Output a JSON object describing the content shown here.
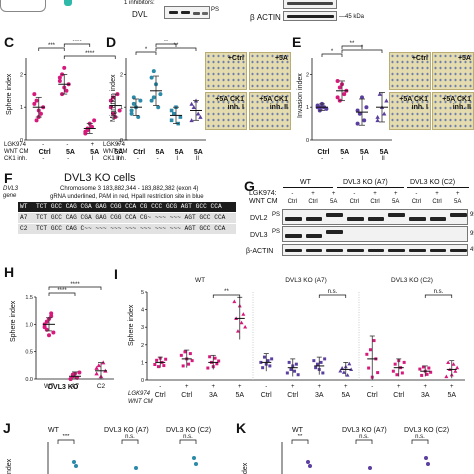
{
  "top": {
    "dvl_label": "DVL",
    "p_symbol": "PS",
    "inhibitors_text": "1 inhibitors:",
    "actin_label": "β ACTIN",
    "kda_label": "45 kDa"
  },
  "panel_c": {
    "letter": "C",
    "ylabel": "Sphere index",
    "sig": [
      "***",
      "****",
      "****"
    ],
    "row_labels": [
      "LGK974",
      "WNT CM",
      "CK1 inh."
    ],
    "lgk": [
      "-",
      "-",
      "+",
      "+"
    ],
    "wnt": [
      "Ctrl",
      "Ctrl",
      "5A",
      "5A"
    ],
    "ck1": [
      "-",
      "-",
      "I",
      "II"
    ],
    "yticks": [
      "0",
      "1",
      "2"
    ]
  },
  "panel_d": {
    "letter": "D",
    "ylabel": "Migration index",
    "sig": [
      "*",
      "**",
      "**"
    ],
    "row_labels": [
      "LGK974",
      "WNT CM",
      "CK1 inh."
    ],
    "wnt": [
      "Ctrl",
      "5A",
      "5A",
      "5A"
    ],
    "ck1": [
      "-",
      "-",
      "I",
      "II"
    ],
    "yticks": [
      "0",
      "1",
      "2"
    ],
    "images": [
      "+Ctrl",
      "+5A",
      "+5A CK1 inh. I",
      "+5A CK1 inh. II"
    ]
  },
  "panel_e": {
    "letter": "E",
    "ylabel": "Invasion index",
    "sig": [
      "*",
      "**",
      "*"
    ],
    "wnt": [
      "Ctrl",
      "5A",
      "5A",
      "5A"
    ],
    "ck1": [
      "-",
      "-",
      "I",
      "II"
    ],
    "yticks": [
      "0",
      "1",
      "2"
    ],
    "images": [
      "+Ctrl",
      "+5A",
      "+5A CK1 inh. I",
      "+5A CK1 inh. II"
    ]
  },
  "panel_f": {
    "letter": "F",
    "title": "DVL3 KO cells",
    "gene_label": "DVL3 gene",
    "chrom": "Chromosome 3 183,882,344 - 183,882,382 (exon 4)",
    "grna_note": "gRNA underlined, PAM in red, HpaII restriction site in blue",
    "rows": [
      {
        "name": "WT",
        "seq": "TCT GCC CAG CGA GAG CGG CCA CG CCC GCG AGT GCC CCA"
      },
      {
        "name": "A7",
        "seq": "TCT GCC CAG CGA GAG CGG CCA CG~ ~~~ ~~~ AGT GCC CCA"
      },
      {
        "name": "C2",
        "seq": "TCT GCC CAG C~~ ~~~ ~~~ ~~~ ~~~ ~~~ ~~~ AGT GCC CCA"
      }
    ]
  },
  "panel_g": {
    "letter": "G",
    "groups": [
      "WT",
      "DVL3 KO (A7)",
      "DVL3 KO (C2)"
    ],
    "lgk_label": "LGK974:",
    "wnt_label": "WNT CM",
    "lgk": [
      "-",
      "+",
      "+",
      "-",
      "+",
      "+",
      "-",
      "+",
      "+"
    ],
    "lanes": [
      "Ctrl",
      "Ctrl",
      "5A",
      "Ctrl",
      "Ctrl",
      "5A",
      "Ctrl",
      "Ctrl",
      "5A"
    ],
    "rows": [
      "DVL2",
      "DVL3",
      "β-ACTIN"
    ],
    "markers": [
      "95",
      "95",
      "45"
    ]
  },
  "panel_h": {
    "letter": "H",
    "ylabel": "Sphere index",
    "sig": [
      "****",
      "****"
    ],
    "categories": [
      "WT",
      "A7",
      "C2"
    ],
    "group_label": "DVL3 KO",
    "yticks": [
      "0.0",
      "0.5",
      "1.0",
      "1.5"
    ]
  },
  "panel_i": {
    "letter": "I",
    "ylabel": "Sphere index",
    "groups": [
      "WT",
      "DVL3 KO (A7)",
      "DVL3 KO (C2)"
    ],
    "sig": [
      "**",
      "n.s.",
      "n.s."
    ],
    "row_labels": [
      "LGK974",
      "WNT CM"
    ],
    "lgk": [
      "-",
      "+",
      "+",
      "+"
    ],
    "wnt": [
      "Ctrl",
      "Ctrl",
      "3A",
      "5A"
    ],
    "yticks": [
      "0",
      "1",
      "2",
      "3",
      "4",
      "5"
    ]
  },
  "panel_j": {
    "letter": "J",
    "groups": [
      "WT",
      "DVL3 KO (A7)",
      "DVL3 KO (C2)"
    ],
    "sig": [
      "***",
      "n.s.",
      "n.s."
    ],
    "ylabel": "ndex"
  },
  "panel_k": {
    "letter": "K",
    "groups": [
      "WT",
      "DVL3 KO (A7)",
      "DVL3 KO (C2)"
    ],
    "sig": [
      "**",
      "n.s.",
      "n.s."
    ],
    "ylabel": "dex"
  },
  "colors": {
    "magenta": "#d6197a",
    "teal": "#2a8aa8",
    "purple": "#5b3fa0",
    "darkred": "#a21d3b",
    "pam_red": "#d0171b",
    "site_blue": "#1f5fc0"
  },
  "chart_data": [
    {
      "type": "scatter",
      "panel": "C",
      "ylabel": "Sphere index",
      "categories": [
        "Ctrl",
        "5A",
        "5A CK1 inh. I",
        "5A CK1 inh. II"
      ],
      "ylim": [
        0,
        2.5
      ],
      "means": [
        1.0,
        1.7,
        0.35,
        1.05
      ],
      "sd": [
        0.3,
        0.3,
        0.15,
        0.35
      ],
      "points": [
        [
          1.4,
          1.2,
          0.9,
          0.8,
          1.0,
          1.1,
          0.6,
          0.7
        ],
        [
          1.9,
          2.0,
          1.6,
          1.5,
          1.7,
          1.8,
          1.4,
          2.2
        ],
        [
          0.2,
          0.3,
          0.5,
          0.4,
          0.6,
          0.25,
          0.35
        ],
        [
          1.0,
          1.3,
          0.7,
          1.4,
          0.9,
          1.2,
          0.8
        ]
      ]
    },
    {
      "type": "scatter",
      "panel": "D",
      "ylabel": "Migration index",
      "categories": [
        "Ctrl",
        "5A",
        "5A CK1 inh. I",
        "5A CK1 inh. II"
      ],
      "ylim": [
        0,
        2.5
      ],
      "means": [
        1.0,
        1.5,
        0.75,
        0.9
      ],
      "sd": [
        0.25,
        0.45,
        0.25,
        0.3
      ],
      "points": [
        [
          0.8,
          1.1,
          1.0,
          0.7,
          1.2,
          0.9,
          1.3
        ],
        [
          1.2,
          2.1,
          1.7,
          1.0,
          1.4,
          1.9,
          1.3
        ],
        [
          0.6,
          0.8,
          1.0,
          0.5,
          0.7,
          0.9
        ],
        [
          0.6,
          1.0,
          1.2,
          0.8,
          0.7,
          1.1
        ]
      ]
    },
    {
      "type": "scatter",
      "panel": "E",
      "ylabel": "Invasion index",
      "categories": [
        "Ctrl",
        "5A",
        "5A CK1 inh. I",
        "5A CK1 inh. II"
      ],
      "ylim": [
        0,
        2.5
      ],
      "means": [
        1.0,
        1.5,
        0.85,
        1.0
      ],
      "sd": [
        0.1,
        0.3,
        0.4,
        0.45
      ],
      "points": [
        [
          1.0,
          0.9,
          1.1,
          1.0,
          0.95,
          1.05,
          1.0
        ],
        [
          1.3,
          1.6,
          1.7,
          1.4,
          1.5,
          1.8,
          1.2
        ],
        [
          0.5,
          0.8,
          1.3,
          0.6,
          1.0,
          0.9
        ],
        [
          0.6,
          1.4,
          1.0,
          0.8,
          1.2,
          0.7
        ]
      ]
    },
    {
      "type": "scatter",
      "panel": "H",
      "ylabel": "Sphere index",
      "categories": [
        "WT",
        "A7",
        "C2"
      ],
      "ylim": [
        0,
        1.5
      ],
      "means": [
        1.0,
        0.05,
        0.15
      ],
      "sd": [
        0.12,
        0.08,
        0.15
      ],
      "points": [
        [
          1.0,
          0.9,
          1.1,
          1.2,
          0.85,
          0.95,
          1.05,
          0.8,
          1.15
        ],
        [
          0.0,
          0.05,
          0.1,
          0.02,
          0.12,
          0.0,
          0.08
        ],
        [
          0.1,
          0.25,
          0.05,
          0.3,
          0.15,
          0.2
        ]
      ]
    },
    {
      "type": "scatter",
      "panel": "I",
      "ylabel": "Sphere index",
      "categories": [
        "WT Ctrl",
        "WT Ctrl+LGK",
        "WT 3A",
        "WT 5A",
        "A7 Ctrl",
        "A7 Ctrl+LGK",
        "A7 3A",
        "A7 5A",
        "C2 Ctrl",
        "C2 Ctrl+LGK",
        "C2 3A",
        "C2 5A"
      ],
      "ylim": [
        0,
        5
      ],
      "means": [
        1.0,
        1.2,
        1.0,
        3.5,
        1.0,
        0.7,
        0.8,
        0.6,
        1.2,
        0.7,
        0.5,
        0.6
      ],
      "sd": [
        0.3,
        0.5,
        0.4,
        1.2,
        0.5,
        0.5,
        0.5,
        0.4,
        1.3,
        0.5,
        0.3,
        0.5
      ]
    }
  ]
}
